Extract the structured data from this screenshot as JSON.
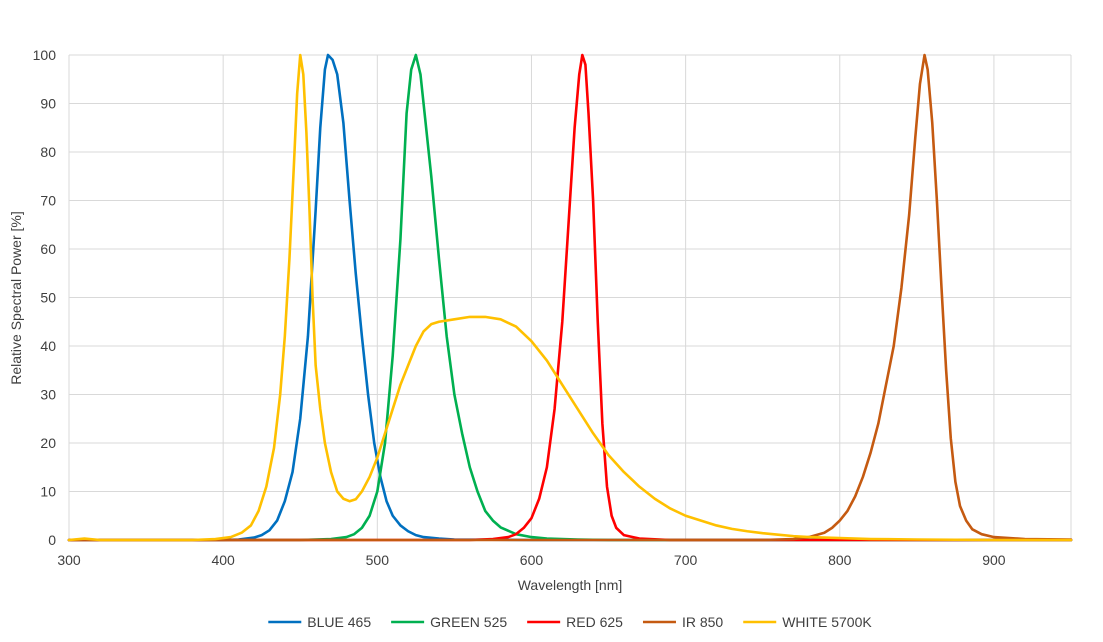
{
  "chart_data": {
    "type": "line",
    "title": "",
    "xlabel": "Wavelength [nm]",
    "ylabel": "Relative Spectral Power [%]",
    "xlim": [
      300,
      950
    ],
    "ylim": [
      0,
      100
    ],
    "xticks": [
      300,
      400,
      500,
      600,
      700,
      800,
      900
    ],
    "yticks": [
      0,
      10,
      20,
      30,
      40,
      50,
      60,
      70,
      80,
      90,
      100
    ],
    "grid": true,
    "legend_position": "bottom",
    "series": [
      {
        "name": "BLUE 465",
        "color": "#0070C0",
        "points": [
          [
            300,
            0
          ],
          [
            400,
            0
          ],
          [
            410,
            0.1
          ],
          [
            420,
            0.5
          ],
          [
            425,
            1
          ],
          [
            430,
            2
          ],
          [
            435,
            4
          ],
          [
            440,
            8
          ],
          [
            445,
            14
          ],
          [
            450,
            25
          ],
          [
            455,
            42
          ],
          [
            460,
            68
          ],
          [
            463,
            85
          ],
          [
            466,
            97
          ],
          [
            468,
            100
          ],
          [
            471,
            99
          ],
          [
            474,
            96
          ],
          [
            478,
            86
          ],
          [
            482,
            70
          ],
          [
            486,
            55
          ],
          [
            490,
            42
          ],
          [
            494,
            30
          ],
          [
            498,
            20
          ],
          [
            502,
            13
          ],
          [
            506,
            8
          ],
          [
            510,
            5
          ],
          [
            515,
            3
          ],
          [
            520,
            1.8
          ],
          [
            525,
            1
          ],
          [
            530,
            0.6
          ],
          [
            540,
            0.3
          ],
          [
            550,
            0.1
          ],
          [
            600,
            0
          ],
          [
            950,
            0
          ]
        ]
      },
      {
        "name": "GREEN 525",
        "color": "#00B050",
        "points": [
          [
            300,
            0
          ],
          [
            450,
            0
          ],
          [
            470,
            0.2
          ],
          [
            480,
            0.6
          ],
          [
            485,
            1.2
          ],
          [
            490,
            2.5
          ],
          [
            495,
            5
          ],
          [
            500,
            10
          ],
          [
            505,
            20
          ],
          [
            510,
            38
          ],
          [
            515,
            62
          ],
          [
            519,
            88
          ],
          [
            522,
            97
          ],
          [
            525,
            100
          ],
          [
            528,
            96
          ],
          [
            531,
            87
          ],
          [
            535,
            75
          ],
          [
            540,
            58
          ],
          [
            545,
            42
          ],
          [
            550,
            30
          ],
          [
            555,
            22
          ],
          [
            560,
            15
          ],
          [
            565,
            10
          ],
          [
            570,
            6
          ],
          [
            575,
            4
          ],
          [
            580,
            2.6
          ],
          [
            590,
            1.2
          ],
          [
            600,
            0.6
          ],
          [
            610,
            0.3
          ],
          [
            630,
            0.1
          ],
          [
            650,
            0
          ],
          [
            950,
            0
          ]
        ]
      },
      {
        "name": "RED 625",
        "color": "#FF0000",
        "points": [
          [
            300,
            0
          ],
          [
            560,
            0
          ],
          [
            575,
            0.2
          ],
          [
            585,
            0.6
          ],
          [
            590,
            1.2
          ],
          [
            595,
            2.5
          ],
          [
            600,
            4.5
          ],
          [
            605,
            8.5
          ],
          [
            610,
            15
          ],
          [
            615,
            27
          ],
          [
            620,
            45
          ],
          [
            624,
            65
          ],
          [
            628,
            85
          ],
          [
            631,
            96
          ],
          [
            633,
            100
          ],
          [
            635,
            98
          ],
          [
            637,
            88
          ],
          [
            640,
            70
          ],
          [
            643,
            45
          ],
          [
            646,
            24
          ],
          [
            649,
            11
          ],
          [
            652,
            5
          ],
          [
            655,
            2.5
          ],
          [
            660,
            1
          ],
          [
            670,
            0.3
          ],
          [
            690,
            0
          ],
          [
            950,
            0
          ]
        ]
      },
      {
        "name": "IR 850",
        "color": "#C55A11",
        "points": [
          [
            300,
            0
          ],
          [
            750,
            0
          ],
          [
            770,
            0.2
          ],
          [
            780,
            0.6
          ],
          [
            790,
            1.5
          ],
          [
            795,
            2.5
          ],
          [
            800,
            4
          ],
          [
            805,
            6
          ],
          [
            810,
            9
          ],
          [
            815,
            13
          ],
          [
            820,
            18
          ],
          [
            825,
            24
          ],
          [
            830,
            32
          ],
          [
            835,
            40
          ],
          [
            840,
            52
          ],
          [
            845,
            67
          ],
          [
            849,
            83
          ],
          [
            852,
            94
          ],
          [
            855,
            100
          ],
          [
            857,
            97
          ],
          [
            860,
            86
          ],
          [
            863,
            70
          ],
          [
            866,
            52
          ],
          [
            869,
            35
          ],
          [
            872,
            21
          ],
          [
            875,
            12
          ],
          [
            878,
            7
          ],
          [
            882,
            4
          ],
          [
            886,
            2.2
          ],
          [
            892,
            1.2
          ],
          [
            900,
            0.6
          ],
          [
            920,
            0.2
          ],
          [
            950,
            0.1
          ]
        ]
      },
      {
        "name": "WHITE 5700K",
        "color": "#FFC000",
        "points": [
          [
            300,
            0
          ],
          [
            310,
            0.3
          ],
          [
            320,
            0
          ],
          [
            380,
            0
          ],
          [
            395,
            0.2
          ],
          [
            405,
            0.6
          ],
          [
            412,
            1.5
          ],
          [
            418,
            3
          ],
          [
            423,
            6
          ],
          [
            428,
            11
          ],
          [
            433,
            19
          ],
          [
            437,
            30
          ],
          [
            440,
            42
          ],
          [
            443,
            58
          ],
          [
            446,
            78
          ],
          [
            448,
            92
          ],
          [
            450,
            100
          ],
          [
            452,
            96
          ],
          [
            454,
            84
          ],
          [
            456,
            68
          ],
          [
            458,
            50
          ],
          [
            460,
            36
          ],
          [
            463,
            27
          ],
          [
            466,
            20
          ],
          [
            470,
            14
          ],
          [
            474,
            10
          ],
          [
            478,
            8.5
          ],
          [
            482,
            8
          ],
          [
            486,
            8.4
          ],
          [
            490,
            10
          ],
          [
            495,
            13
          ],
          [
            500,
            17
          ],
          [
            505,
            22
          ],
          [
            510,
            27
          ],
          [
            515,
            32
          ],
          [
            520,
            36
          ],
          [
            525,
            40
          ],
          [
            530,
            43
          ],
          [
            535,
            44.5
          ],
          [
            540,
            45
          ],
          [
            550,
            45.5
          ],
          [
            560,
            46
          ],
          [
            570,
            46
          ],
          [
            580,
            45.5
          ],
          [
            590,
            44
          ],
          [
            600,
            41
          ],
          [
            610,
            37
          ],
          [
            620,
            32
          ],
          [
            630,
            27
          ],
          [
            640,
            22
          ],
          [
            650,
            17.5
          ],
          [
            660,
            14
          ],
          [
            670,
            11
          ],
          [
            680,
            8.5
          ],
          [
            690,
            6.5
          ],
          [
            700,
            5
          ],
          [
            710,
            4
          ],
          [
            720,
            3
          ],
          [
            730,
            2.3
          ],
          [
            740,
            1.8
          ],
          [
            750,
            1.4
          ],
          [
            760,
            1.1
          ],
          [
            770,
            0.8
          ],
          [
            780,
            0.6
          ],
          [
            800,
            0.4
          ],
          [
            820,
            0.2
          ],
          [
            850,
            0.1
          ],
          [
            900,
            0
          ],
          [
            950,
            0
          ]
        ]
      }
    ]
  }
}
